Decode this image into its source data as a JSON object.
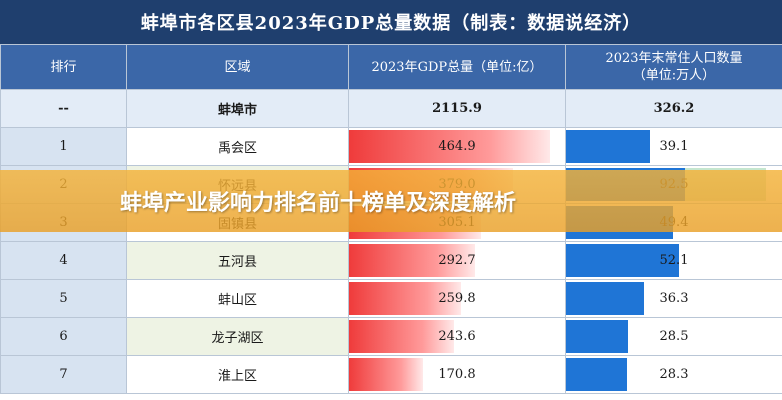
{
  "title": "蚌埠市各区县2023年GDP总量数据（制表：数据说经济）",
  "headers": {
    "rank": "排行",
    "district": "区域",
    "gdp_line1": "2023年GDP总量（单位:亿）",
    "pop_line1": "2023年末常住人口数量",
    "pop_line2": "（单位:万人）"
  },
  "total": {
    "rank": "--",
    "district": "蚌埠市",
    "gdp": "2115.9",
    "pop": "326.2"
  },
  "rows": [
    {
      "rank": "1",
      "district": "禹会区",
      "gdp": "464.9",
      "pop": "39.1",
      "gdp_value": 464.9,
      "pop_value": 39.1
    },
    {
      "rank": "2",
      "district": "怀远县",
      "gdp": "379.0",
      "pop": "92.5",
      "gdp_value": 379.0,
      "pop_value": 92.5
    },
    {
      "rank": "3",
      "district": "固镇县",
      "gdp": "305.1",
      "pop": "49.4",
      "gdp_value": 305.1,
      "pop_value": 49.4
    },
    {
      "rank": "4",
      "district": "五河县",
      "gdp": "292.7",
      "pop": "52.1",
      "gdp_value": 292.7,
      "pop_value": 52.1
    },
    {
      "rank": "5",
      "district": "蚌山区",
      "gdp": "259.8",
      "pop": "36.3",
      "gdp_value": 259.8,
      "pop_value": 36.3
    },
    {
      "rank": "6",
      "district": "龙子湖区",
      "gdp": "243.6",
      "pop": "28.5",
      "gdp_value": 243.6,
      "pop_value": 28.5
    },
    {
      "rank": "7",
      "district": "淮上区",
      "gdp": "170.8",
      "pop": "28.3",
      "gdp_value": 170.8,
      "pop_value": 28.3
    }
  ],
  "banner": "蚌埠产业影响力排名前十榜单及深度解析",
  "colors": {
    "title_bg": "#1f3f6e",
    "header_bg": "#3b67a8",
    "gdp_bar": "#ef3b3b",
    "pop_bar": "#1f75d6",
    "banner_bg": "#f4b238"
  }
}
